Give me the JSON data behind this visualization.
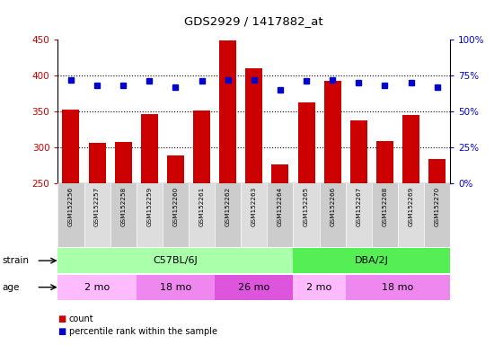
{
  "title": "GDS2929 / 1417882_at",
  "samples": [
    "GSM152256",
    "GSM152257",
    "GSM152258",
    "GSM152259",
    "GSM152260",
    "GSM152261",
    "GSM152262",
    "GSM152263",
    "GSM152264",
    "GSM152265",
    "GSM152266",
    "GSM152267",
    "GSM152268",
    "GSM152269",
    "GSM152270"
  ],
  "counts": [
    352,
    306,
    307,
    346,
    289,
    351,
    449,
    410,
    276,
    362,
    393,
    338,
    309,
    345,
    284
  ],
  "percentile_ranks": [
    72,
    68,
    68,
    71,
    67,
    71,
    72,
    72,
    65,
    71,
    72,
    70,
    68,
    70,
    67
  ],
  "ylim_left": [
    250,
    450
  ],
  "ylim_right": [
    0,
    100
  ],
  "yticks_left": [
    250,
    300,
    350,
    400,
    450
  ],
  "yticks_right": [
    0,
    25,
    50,
    75,
    100
  ],
  "bar_color": "#cc0000",
  "dot_color": "#0000cc",
  "strain_groups": [
    {
      "label": "C57BL/6J",
      "start": 0,
      "end": 9,
      "color": "#aaffaa"
    },
    {
      "label": "DBA/2J",
      "start": 9,
      "end": 15,
      "color": "#55ee55"
    }
  ],
  "age_groups": [
    {
      "label": "2 mo",
      "start": 0,
      "end": 3,
      "color": "#ffbbff"
    },
    {
      "label": "18 mo",
      "start": 3,
      "end": 6,
      "color": "#ee88ee"
    },
    {
      "label": "26 mo",
      "start": 6,
      "end": 9,
      "color": "#dd55dd"
    },
    {
      "label": "2 mo",
      "start": 9,
      "end": 11,
      "color": "#ffbbff"
    },
    {
      "label": "18 mo",
      "start": 11,
      "end": 15,
      "color": "#ee88ee"
    }
  ],
  "tick_label_color_left": "#cc0000",
  "tick_label_color_right": "#0000cc"
}
